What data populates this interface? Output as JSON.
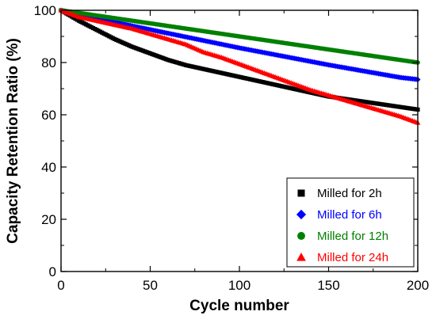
{
  "chart_data": {
    "type": "scatter",
    "title": "",
    "xlabel": "Cycle number",
    "ylabel": "Capacity Retention Ratio (%)",
    "xlim": [
      0,
      200
    ],
    "ylim": [
      0,
      100
    ],
    "x_ticks": [
      0,
      50,
      100,
      150,
      200
    ],
    "y_ticks": [
      0,
      20,
      40,
      60,
      80,
      100
    ],
    "grid": false,
    "legend_position": "bottom-right",
    "series": [
      {
        "name": "Milled for 2h",
        "color": "#000000",
        "marker": "square",
        "x": [
          0,
          10,
          20,
          30,
          40,
          50,
          60,
          70,
          80,
          90,
          100,
          110,
          120,
          130,
          140,
          150,
          160,
          170,
          180,
          190,
          200
        ],
        "y": [
          100,
          96,
          92.5,
          89,
          86,
          83.5,
          81,
          79,
          77.5,
          76,
          74.5,
          73,
          71.5,
          70,
          68.5,
          67,
          66,
          65,
          64,
          63,
          62
        ]
      },
      {
        "name": "Milled for 6h",
        "color": "#0000ff",
        "marker": "diamond",
        "x": [
          0,
          10,
          20,
          30,
          40,
          50,
          60,
          70,
          80,
          90,
          100,
          110,
          120,
          130,
          140,
          150,
          160,
          170,
          180,
          190,
          200
        ],
        "y": [
          100,
          98.5,
          97,
          95.5,
          94,
          92.6,
          91.2,
          89.8,
          88.4,
          87,
          85.6,
          84.3,
          83,
          81.7,
          80.4,
          79.1,
          77.9,
          76.7,
          75.5,
          74.3,
          73.5
        ]
      },
      {
        "name": "Milled for 12h",
        "color": "#008000",
        "marker": "circle",
        "x": [
          0,
          10,
          20,
          30,
          40,
          50,
          60,
          70,
          80,
          90,
          100,
          110,
          120,
          130,
          140,
          150,
          160,
          170,
          180,
          190,
          200
        ],
        "y": [
          100,
          99,
          98,
          97,
          96,
          95,
          94,
          93,
          92,
          91,
          90,
          89,
          88,
          87,
          86,
          85,
          84,
          83,
          82,
          81,
          80
        ]
      },
      {
        "name": "Milled for 24h",
        "color": "#ff0000",
        "marker": "triangle",
        "x": [
          0,
          10,
          20,
          30,
          40,
          50,
          60,
          70,
          80,
          90,
          100,
          110,
          120,
          130,
          140,
          150,
          160,
          170,
          180,
          190,
          200
        ],
        "y": [
          100,
          97.5,
          96,
          94.5,
          93,
          91,
          89,
          87,
          84,
          82,
          79.5,
          77,
          74.5,
          72,
          69.5,
          67.5,
          65.5,
          63.5,
          61.5,
          59.5,
          57
        ]
      }
    ]
  }
}
